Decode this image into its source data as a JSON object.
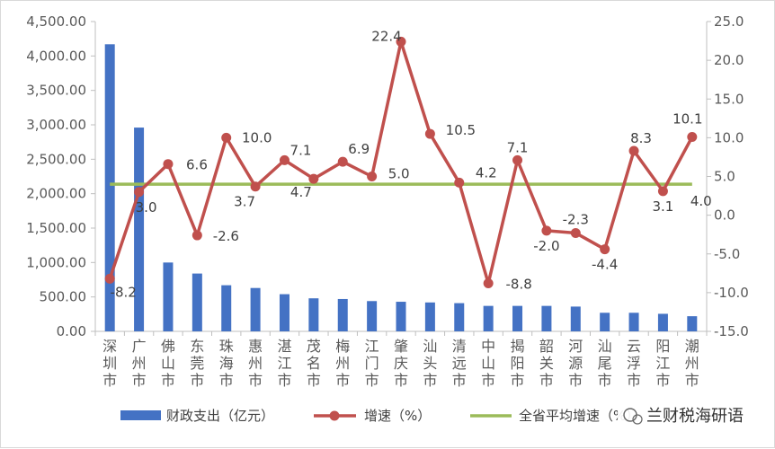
{
  "chart_data": {
    "type": "bar",
    "categories": [
      "深圳市",
      "广州市",
      "佛山市",
      "东莞市",
      "珠海市",
      "惠州市",
      "湛江市",
      "茂名市",
      "梅州市",
      "江门市",
      "肇庆市",
      "汕头市",
      "清远市",
      "中山市",
      "揭阳市",
      "韶关市",
      "河源市",
      "汕尾市",
      "云浮市",
      "阳江市",
      "潮州市"
    ],
    "left_axis": {
      "ticks": [
        "0.00",
        "500.00",
        "1,000.00",
        "1,500.00",
        "2,000.00",
        "2,500.00",
        "3,000.00",
        "3,500.00",
        "4,000.00",
        "4,500.00"
      ],
      "ylim": [
        0,
        4500
      ]
    },
    "right_axis": {
      "ticks": [
        "-15.0",
        "-10.0",
        "-5.0",
        "0.0",
        "5.0",
        "10.0",
        "15.0",
        "20.0",
        "25.0"
      ],
      "ylim": [
        -15,
        25
      ]
    },
    "series": [
      {
        "name": "财政支出（亿元）",
        "type": "bar",
        "axis": "left",
        "color": "#4472c4",
        "values": [
          4170,
          2960,
          1000,
          840,
          670,
          630,
          540,
          480,
          470,
          440,
          430,
          420,
          410,
          370,
          370,
          370,
          360,
          270,
          270,
          255,
          220
        ]
      },
      {
        "name": "增速（%）",
        "type": "line",
        "axis": "right",
        "color": "#c0504d",
        "values": [
          -8.2,
          3.0,
          6.6,
          -2.6,
          10.0,
          3.7,
          7.1,
          4.7,
          6.9,
          5.0,
          22.4,
          10.5,
          4.2,
          -8.8,
          7.1,
          -2.0,
          -2.3,
          -4.4,
          8.3,
          3.1,
          10.1
        ],
        "labels": [
          "-8.2",
          "3.0",
          "6.6",
          "-2.6",
          "10.0",
          "3.7",
          "7.1",
          "4.7",
          "6.9",
          "5.0",
          "22.4",
          "10.5",
          "4.2",
          "-8.8",
          "7.1",
          "-2.0",
          "-2.3",
          "-4.4",
          "8.3",
          "3.1",
          "10.1"
        ]
      },
      {
        "name": "全省平均增速（%）",
        "type": "line",
        "axis": "right",
        "color": "#9bbb59",
        "value": 4.0,
        "label": "4.0",
        "label_color": "#ff0000"
      }
    ],
    "legend": {
      "position": "bottom",
      "entries": [
        "财政支出（亿元）",
        "增速（%）",
        "全省平均增速（%）"
      ]
    },
    "grid": false
  },
  "watermark": "兰财税海研语"
}
